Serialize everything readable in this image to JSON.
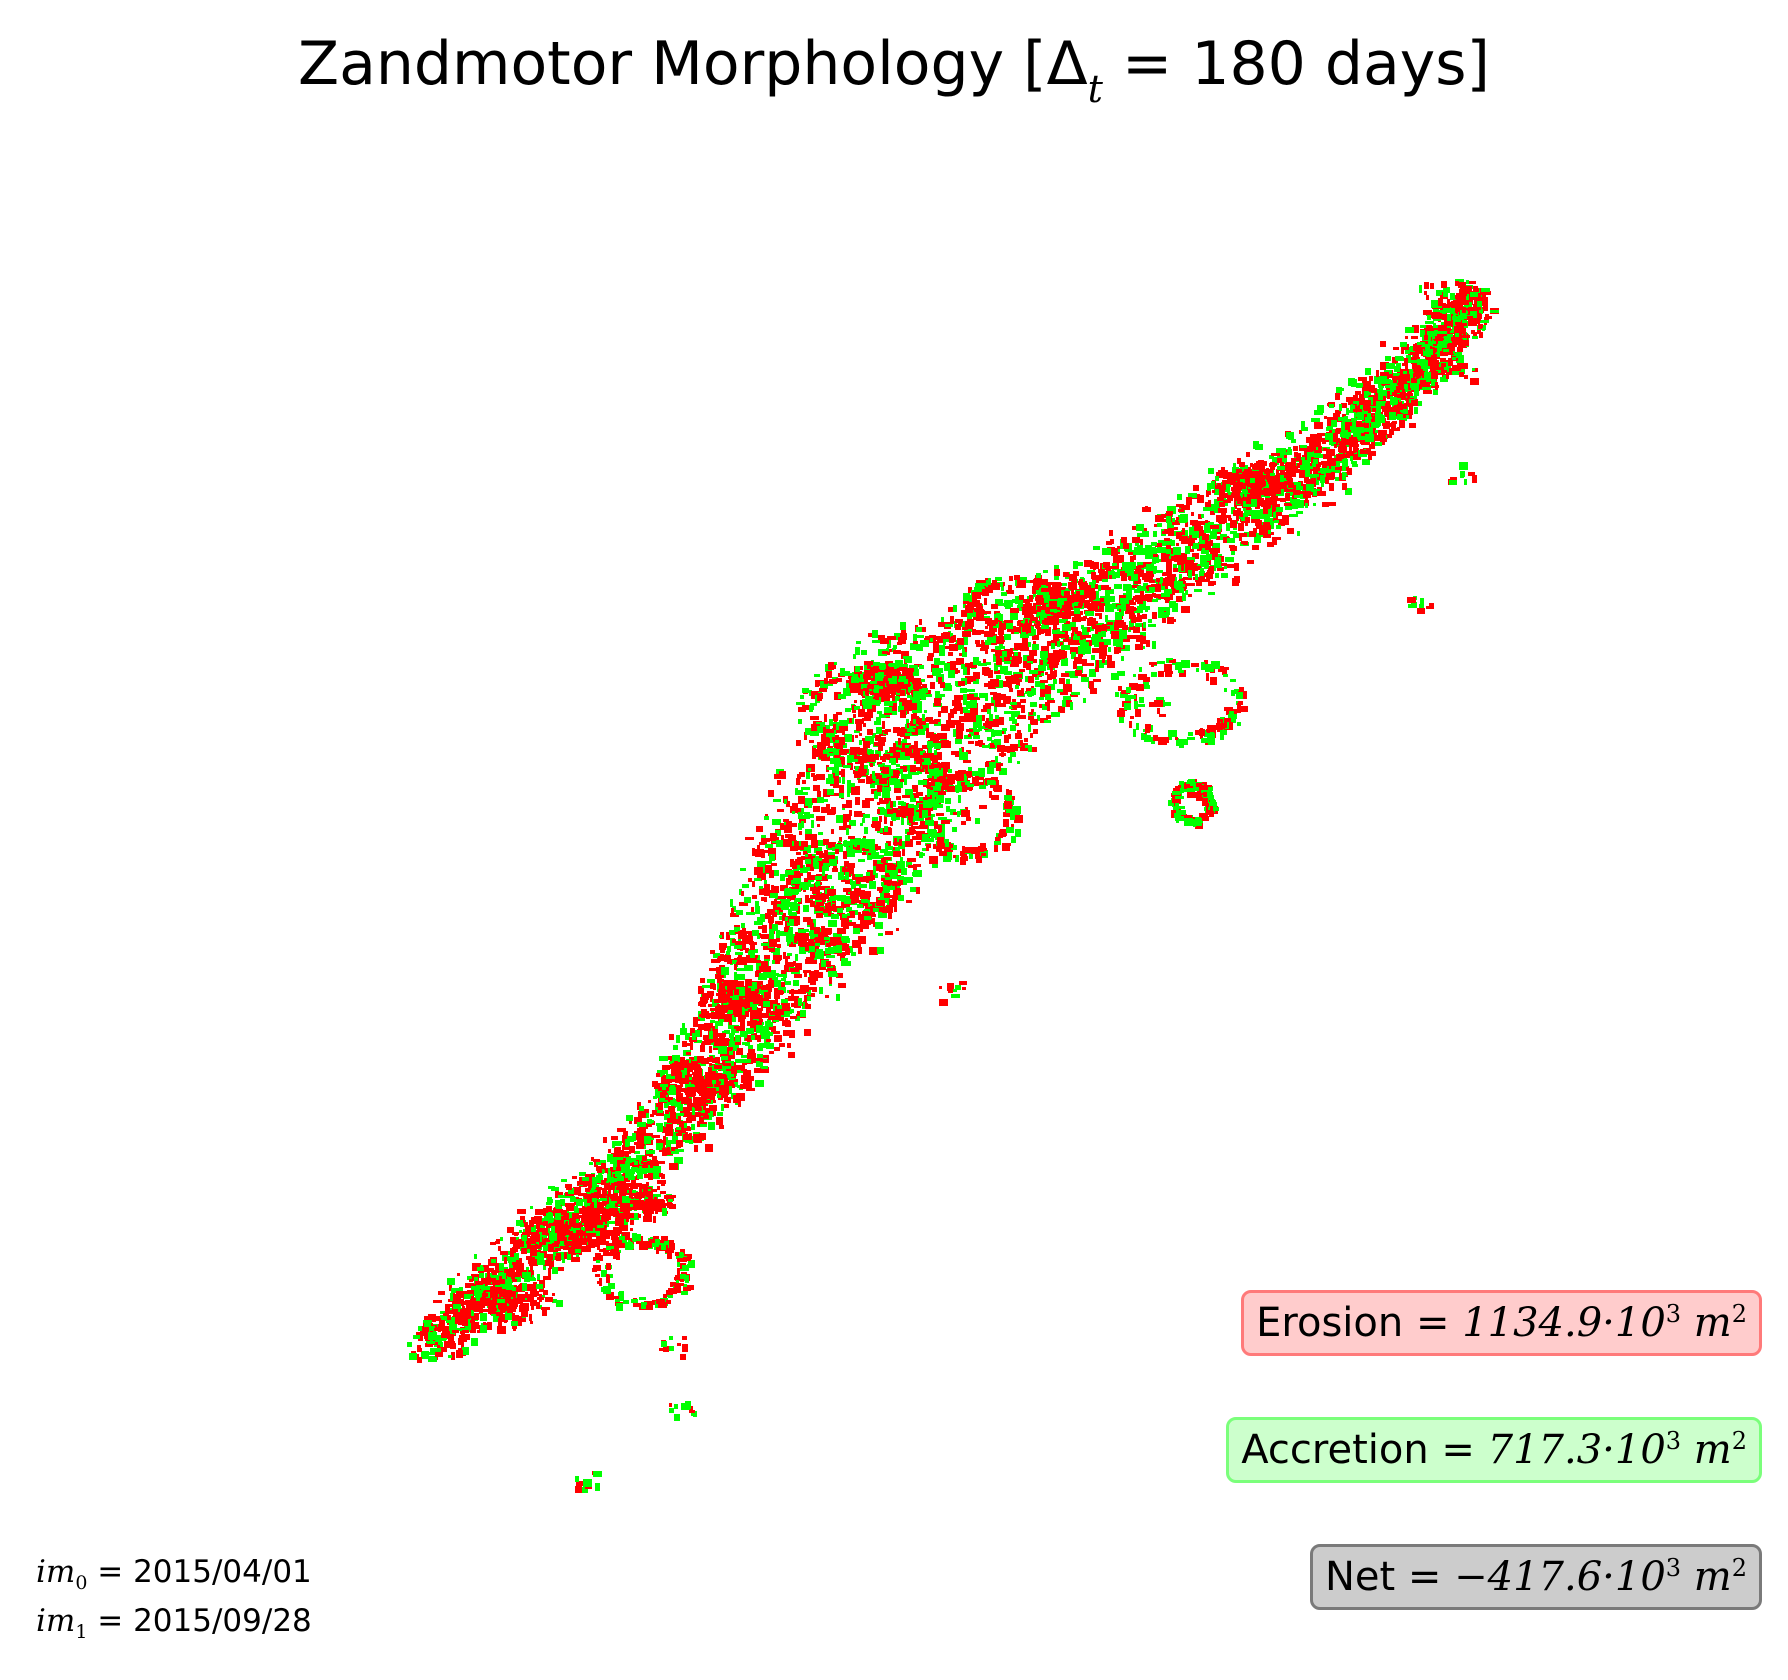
{
  "title": {
    "text": "Zandmotor Morphology [Δ",
    "subscript": "t",
    "suffix": " = 180 days]"
  },
  "colors": {
    "erosion": "#ff0000",
    "accretion": "#00ff00"
  },
  "stats": {
    "erosion": {
      "label": "Erosion = ",
      "value": "1134.9",
      "unit": "·10",
      "exp": "3",
      "m": " m",
      "m_exp": "2"
    },
    "accretion": {
      "label": "Accretion = ",
      "value": "717.3",
      "unit": "·10",
      "exp": "3",
      "m": " m",
      "m_exp": "2"
    },
    "net": {
      "label": "Net = ",
      "value": "−417.6",
      "unit": "·10",
      "exp": "3",
      "m": " m",
      "m_exp": "2"
    }
  },
  "dates": {
    "im0": {
      "name": "im",
      "index": "0",
      "text": " = 2015/04/01"
    },
    "im1": {
      "name": "im",
      "index": "1",
      "text": " = 2015/09/28"
    }
  }
}
